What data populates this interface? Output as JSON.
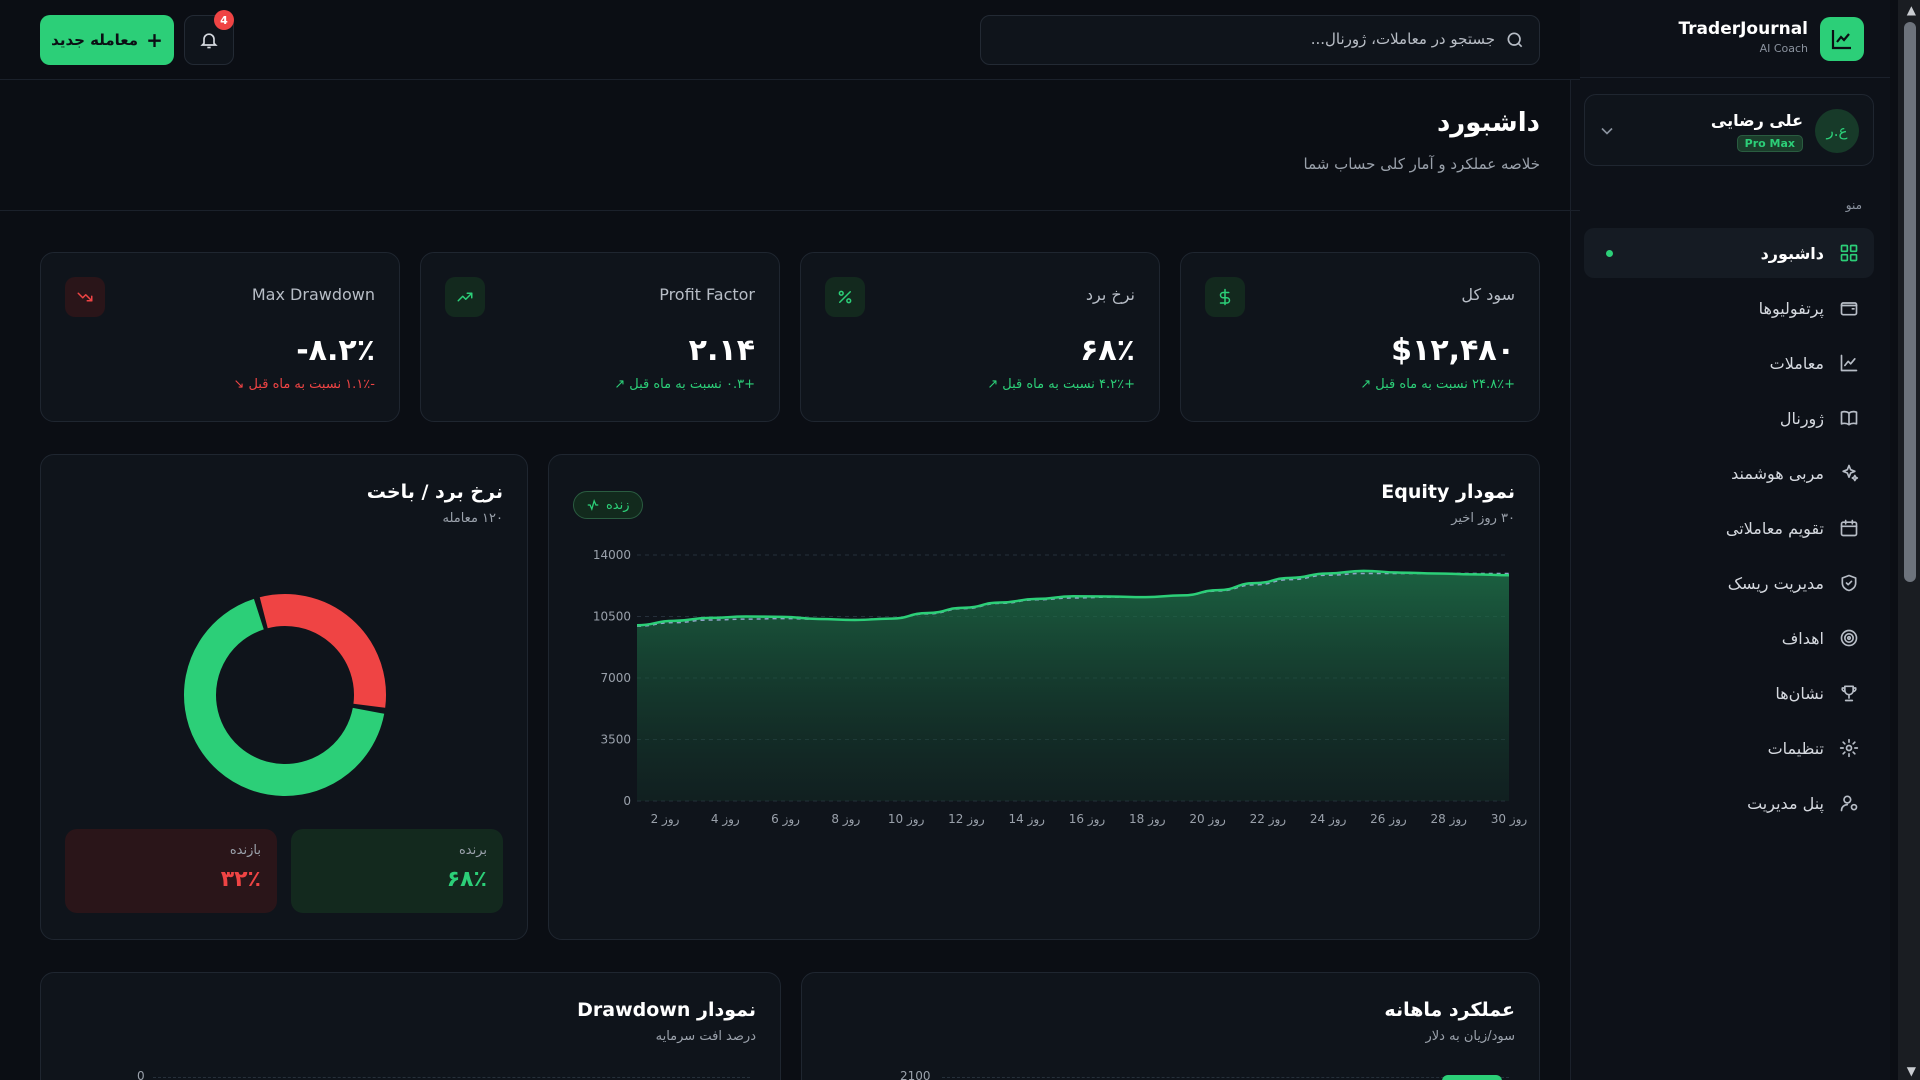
{
  "brand": {
    "title": "TraderJournal",
    "subtitle": "AI Coach"
  },
  "user": {
    "name": "علی رضایی",
    "badge": "Pro Max",
    "initials": "ع.ر"
  },
  "menu_label": "منو",
  "nav": [
    {
      "label": "داشبورد",
      "icon": "grid-icon",
      "active": true
    },
    {
      "label": "پرتفولیوها",
      "icon": "wallet-icon"
    },
    {
      "label": "معاملات",
      "icon": "chart-line-icon"
    },
    {
      "label": "ژورنال",
      "icon": "book-icon"
    },
    {
      "label": "مربی هوشمند",
      "icon": "sparkles-icon"
    },
    {
      "label": "تقویم معاملاتی",
      "icon": "calendar-icon"
    },
    {
      "label": "مدیریت ریسک",
      "icon": "shield-icon"
    },
    {
      "label": "اهداف",
      "icon": "target-icon"
    },
    {
      "label": "نشان‌ها",
      "icon": "trophy-icon"
    },
    {
      "label": "تنظیمات",
      "icon": "gear-icon"
    },
    {
      "label": "پنل مدیریت",
      "icon": "user-cog-icon"
    }
  ],
  "topbar": {
    "search_placeholder": "جستجو در معاملات، ژورنال...",
    "notifications": "4",
    "new_trade": "معامله جدید"
  },
  "header": {
    "title": "داشبورد",
    "subtitle": "خلاصه عملکرد و آمار کلی حساب شما"
  },
  "stats": [
    {
      "title": "سود کل",
      "value": "$۱۲,۴۸۰",
      "delta": "+۲۴.۸٪ نسبت به ماه قبل",
      "trend": "up",
      "icon": "dollar-icon"
    },
    {
      "title": "نرخ برد",
      "value": "۶۸٪",
      "delta": "+۴.۲٪ نسبت به ماه قبل",
      "trend": "up",
      "icon": "percent-icon"
    },
    {
      "title": "Profit Factor",
      "value": "۲.۱۴",
      "delta": "+۰.۳ نسبت به ماه قبل",
      "trend": "up",
      "icon": "trending-up-icon"
    },
    {
      "title": "Max Drawdown",
      "value": "-۸.۲٪",
      "delta": "-۱.۱٪ نسبت به ماه قبل",
      "trend": "down",
      "icon": "trending-down-icon"
    }
  ],
  "equity": {
    "title": "نمودار Equity",
    "subtitle": "۳۰ روز اخیر",
    "live_label": "زنده"
  },
  "winloss": {
    "title": "نرخ برد / باخت",
    "subtitle": "۱۲۰ معامله",
    "win_label": "برنده",
    "win_value": "۶۸٪",
    "loss_label": "بازنده",
    "loss_value": "۳۲٪"
  },
  "monthly": {
    "title": "عملکرد ماهانه",
    "subtitle": "سود/زیان به دلار",
    "first_tick": "2100"
  },
  "drawdown": {
    "title": "نمودار Drawdown",
    "subtitle": "درصد افت سرمایه",
    "first_tick": "0"
  },
  "colors": {
    "accent": "#2ccf78",
    "loss": "#ef4444",
    "bg": "#0b0e14",
    "card": "#0f141b"
  },
  "chart_data": [
    {
      "type": "area",
      "series": [
        {
          "name": "equity",
          "values": [
            10000,
            10250,
            10420,
            10500,
            10480,
            10360,
            10300,
            10380,
            10700,
            11000,
            11300,
            11500,
            11650,
            11640,
            11600,
            11700,
            12000,
            12400,
            12700,
            12950,
            13100,
            13000,
            12950,
            12900,
            12850
          ]
        },
        {
          "name": "trend",
          "values": [
            9950,
            10150,
            10300,
            10350,
            10380,
            10350,
            10320,
            10400,
            10650,
            10950,
            11250,
            11450,
            11550,
            11600,
            11600,
            11700,
            11950,
            12300,
            12600,
            12850,
            12950,
            12950,
            12950,
            12950,
            12950
          ]
        }
      ],
      "x_ticks": [
        "روز 2",
        "روز 4",
        "روز 6",
        "روز 8",
        "روز 10",
        "روز 12",
        "روز 14",
        "روز 16",
        "روز 18",
        "روز 20",
        "روز 22",
        "روز 24",
        "روز 26",
        "روز 28",
        "روز 30"
      ],
      "y_ticks": [
        0,
        3500,
        7000,
        10500,
        14000
      ],
      "ylim": [
        0,
        14000
      ],
      "grid": true
    },
    {
      "type": "pie",
      "categories": [
        "برنده",
        "بازنده"
      ],
      "values": [
        68,
        32
      ]
    }
  ]
}
